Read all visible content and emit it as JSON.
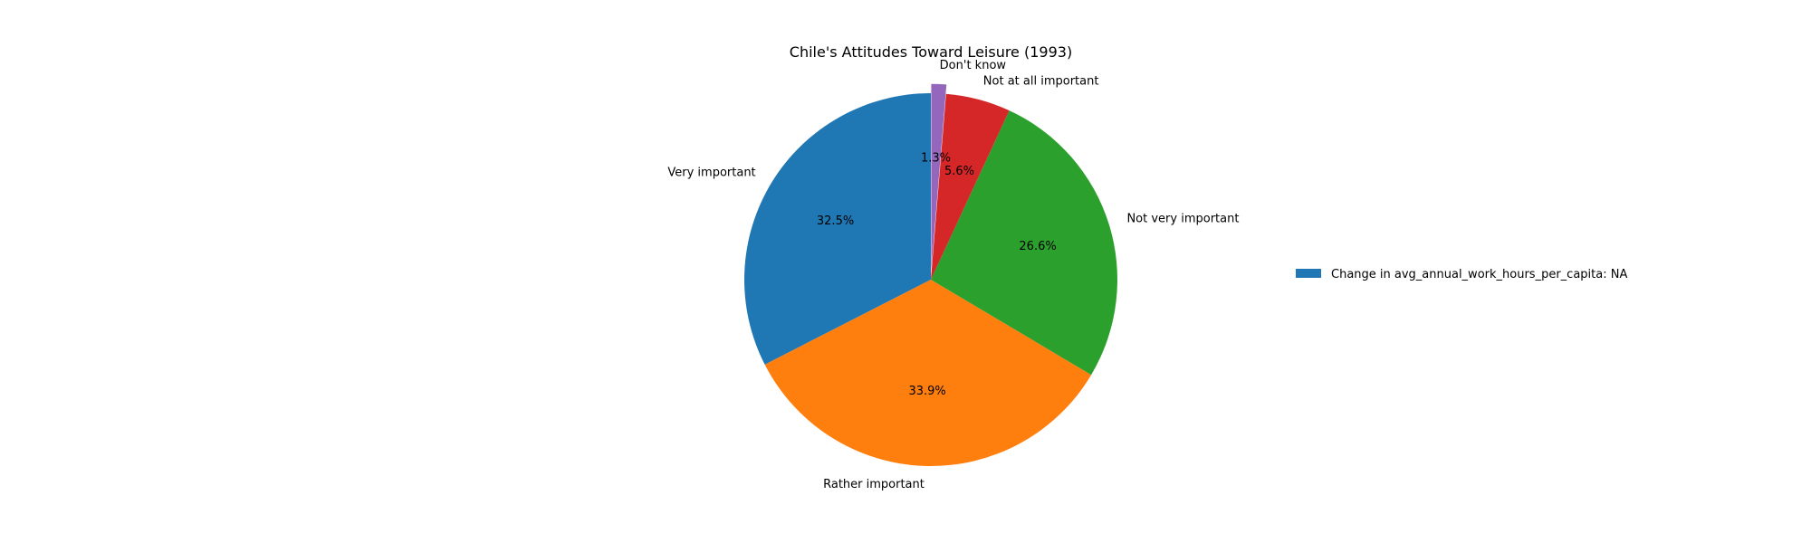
{
  "chart_data": {
    "type": "pie",
    "title": "Chile's Attitudes Toward Leisure (1993)",
    "slices": [
      {
        "label": "Very important",
        "value": 32.5,
        "pct_label": "32.5%",
        "color": "#1f77b4"
      },
      {
        "label": "Rather important",
        "value": 33.9,
        "pct_label": "33.9%",
        "color": "#ff7f0e"
      },
      {
        "label": "Not very important",
        "value": 26.6,
        "pct_label": "26.6%",
        "color": "#2ca02c"
      },
      {
        "label": "Not at all important",
        "value": 5.6,
        "pct_label": "5.6%",
        "color": "#d62728"
      },
      {
        "label": "Don't know",
        "value": 1.3,
        "pct_label": "1.3%",
        "color": "#9467bd",
        "exploded": true
      }
    ],
    "start_angle_deg": 90,
    "direction": "counterclockwise",
    "legend": {
      "placement": "right",
      "entries": [
        {
          "label": "Change in avg_annual_work_hours_per_capita: NA",
          "color": "#1f77b4"
        }
      ]
    }
  }
}
